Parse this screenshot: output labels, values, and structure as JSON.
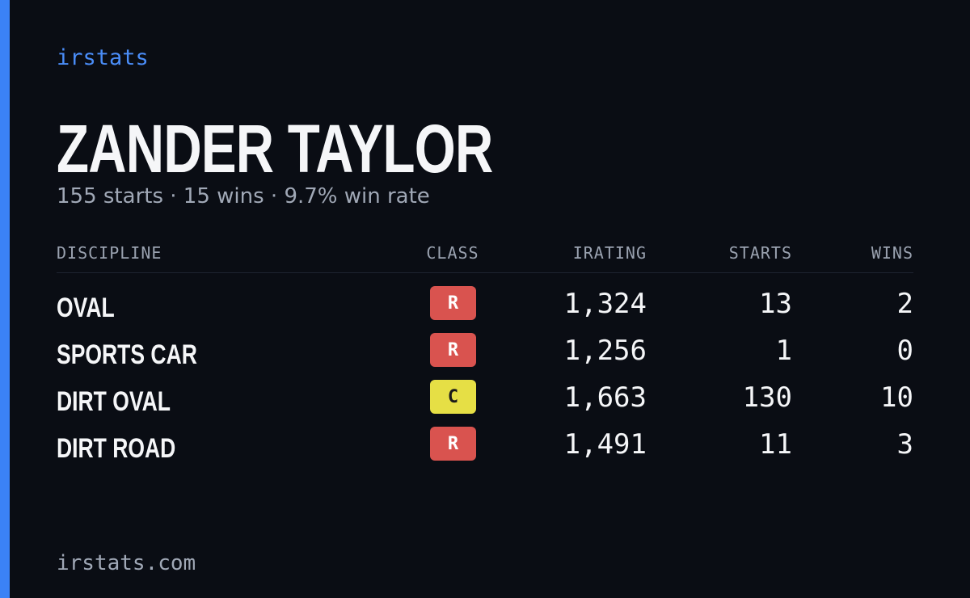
{
  "brand": "irstats",
  "driver": {
    "name": "ZANDER TAYLOR",
    "summary": "155 starts · 15 wins · 9.7% win rate"
  },
  "table": {
    "headers": [
      "DISCIPLINE",
      "CLASS",
      "IRATING",
      "STARTS",
      "WINS"
    ],
    "rows": [
      [
        "OVAL",
        "R",
        "1,324",
        "13",
        "2"
      ],
      [
        "SPORTS CAR",
        "R",
        "1,256",
        "1",
        "0"
      ],
      [
        "DIRT OVAL",
        "C",
        "1,663",
        "130",
        "10"
      ],
      [
        "DIRT ROAD",
        "R",
        "1,491",
        "11",
        "3"
      ]
    ],
    "class_colors": {
      "R": {
        "bg": "#d9534f",
        "fg": "#ffffff"
      },
      "C": {
        "bg": "#e6df45",
        "fg": "#1a1a1a"
      }
    }
  },
  "footer": "irstats.com"
}
